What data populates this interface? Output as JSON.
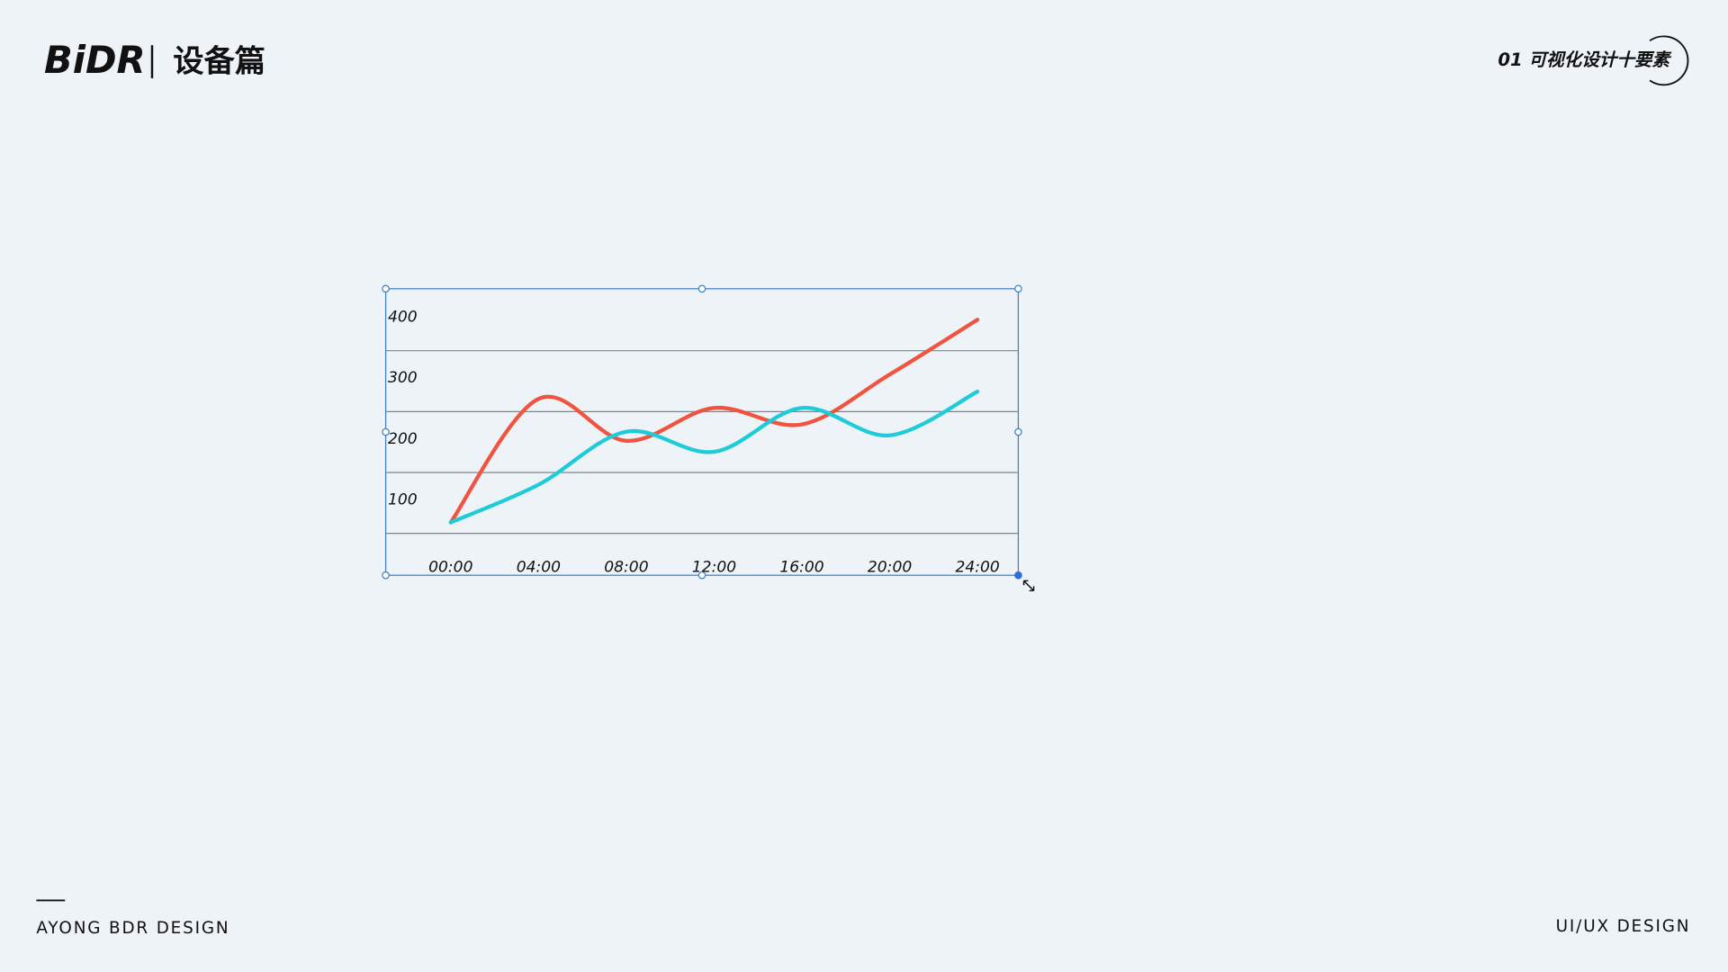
{
  "header": {
    "logo": "BiDR",
    "section": "设备篇",
    "chapter": "01 可视化设计十要素"
  },
  "footer": {
    "left": "AYONG BDR DESIGN",
    "right": "UI/UX DESIGN"
  },
  "chart_data": {
    "type": "line",
    "categories": [
      "00:00",
      "04:00",
      "08:00",
      "12:00",
      "16:00",
      "20:00",
      "24:00"
    ],
    "series": [
      {
        "color": "#f0533f",
        "values": [
          118,
          321,
          252,
          306,
          279,
          361,
          451
        ]
      },
      {
        "color": "#1ecbd9",
        "values": [
          118,
          180,
          267,
          234,
          306,
          261,
          333
        ]
      }
    ],
    "ylim": [
      100,
      500
    ],
    "yticks": [
      100,
      200,
      300,
      400
    ],
    "grid": true
  }
}
